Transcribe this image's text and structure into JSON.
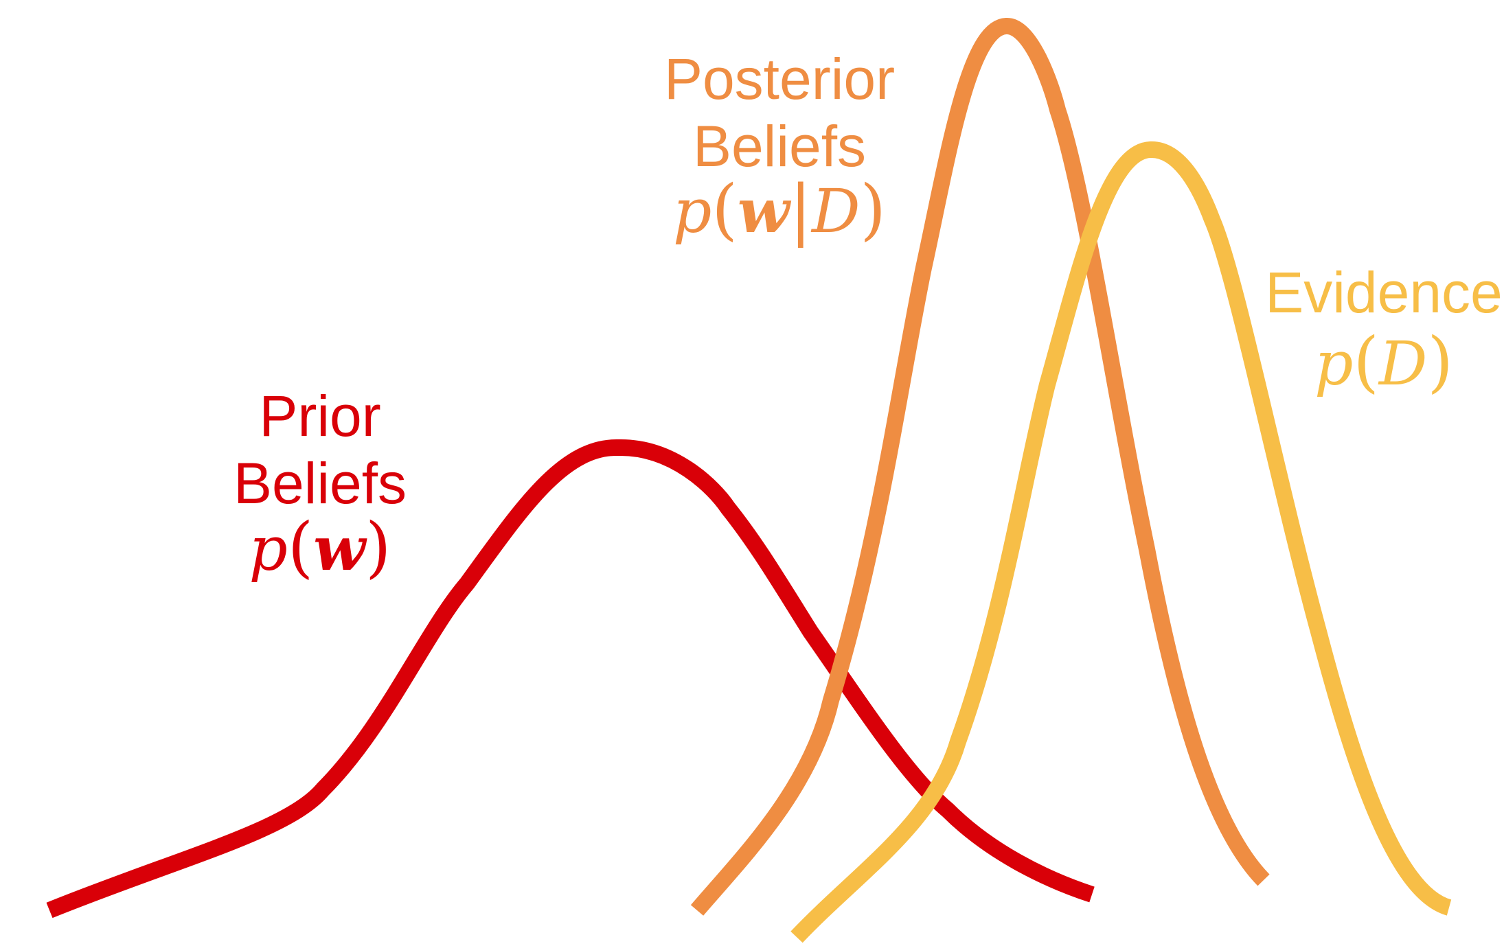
{
  "prior": {
    "label_line1": "Prior",
    "label_line2": "Beliefs",
    "formula_p": "p",
    "formula_open": "(",
    "formula_w": "w",
    "formula_close": ")",
    "color": "#d90008"
  },
  "posterior": {
    "label_line1": "Posterior",
    "label_line2": "Beliefs",
    "formula_p": "p",
    "formula_open": "(",
    "formula_w": "w",
    "formula_bar": "|",
    "formula_d": "D",
    "formula_close": ")",
    "color": "#ef8d42"
  },
  "evidence": {
    "label_line1": "Evidence",
    "formula_p": "p",
    "formula_open": "(",
    "formula_d": "D",
    "formula_close": ")",
    "color": "#f7be47"
  }
}
